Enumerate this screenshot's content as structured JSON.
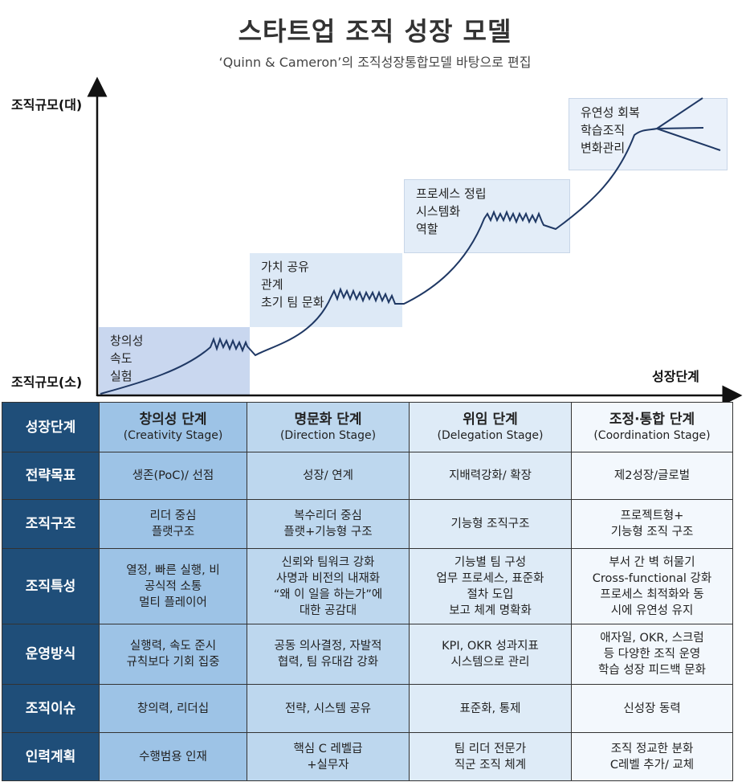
{
  "header": {
    "title": "스타트업 조직 성장 모델",
    "subtitle": "‘Quinn & Cameron’의 조직성장통합모델 바탕으로 편집"
  },
  "axes": {
    "y_high": "조직규모(대)",
    "y_low": "조직규모(소)",
    "x": "성장단계"
  },
  "stage_boxes": [
    {
      "lines": [
        "창의성",
        "속도",
        "실험"
      ],
      "color": "#c9d7ef"
    },
    {
      "lines": [
        "가치 공유",
        "관계",
        "초기 팀 문화"
      ],
      "color": "#dde9f6"
    },
    {
      "lines": [
        "프로세스 정립",
        "시스템화",
        "역할"
      ],
      "color": "#e3edf8"
    },
    {
      "lines": [
        "유연성 회복",
        "학습조직",
        "변화관리"
      ],
      "color": "#eaf1fa"
    }
  ],
  "table": {
    "header_label": "성장단계",
    "stages": [
      {
        "name": "창의성 단계",
        "en": "(Creativity Stage)"
      },
      {
        "name": "명문화 단계",
        "en": "(Direction Stage)"
      },
      {
        "name": "위임 단계",
        "en": "(Delegation Stage)"
      },
      {
        "name": "조정·통합 단계",
        "en": "(Coordination Stage)"
      }
    ],
    "rows": [
      {
        "label": "전략목표",
        "cells": [
          "생존(PoC)/ 선점",
          "성장/ 연계",
          "지배력강화/ 확장",
          "제2성장/글로벌"
        ]
      },
      {
        "label": "조직구조",
        "cells": [
          "리더 중심\n플랫구조",
          "복수리더 중심\n플랫+기능형 구조",
          "기능형 조직구조",
          "프로젝트형+\n기능형 조직 구조"
        ]
      },
      {
        "label": "조직특성",
        "cells": [
          "열정, 빠른 실행, 비\n공식적 소통\n멀티 플레이어",
          "신뢰와 팀워크 강화\n사명과 비전의 내재화\n“왜 이 일을 하는가”에\n대한 공감대",
          "기능별 팀 구성\n업무 프로세스, 표준화\n절차 도입\n보고 체계 명확화",
          "부서 간 벽 허물기\nCross-functional 강화\n프로세스 최적화와 동\n시에 유연성 유지"
        ]
      },
      {
        "label": "운영방식",
        "cells": [
          "실행력, 속도 준시\n규칙보다 기회 집중",
          "공동 의사결정, 자발적\n협력, 팀 유대감 강화",
          "KPI, OKR 성과지표\n시스템으로 관리",
          "애자일, OKR, 스크럼\n등 다양한 조직 운영\n학습 성장 피드백 문화"
        ]
      },
      {
        "label": "조직이슈",
        "cells": [
          "창의력, 리더십",
          "전략, 시스템 공유",
          "표준화, 통제",
          "신성장 동력"
        ]
      },
      {
        "label": "인력계획",
        "cells": [
          "수행범용 인재",
          "핵심 C 레벨급\n+실무자",
          "팀 리더 전문가\n직군 조직 체계",
          "조직 정교한 분화\nC레벨 추가/ 교체"
        ]
      }
    ]
  },
  "colors": {
    "row_header": "#1f4e79",
    "col1": "#9dc3e6",
    "col2": "#bdd7ee",
    "col3": "#deebf7",
    "col4": "#f3f8fd",
    "curve": "#1f3864"
  }
}
